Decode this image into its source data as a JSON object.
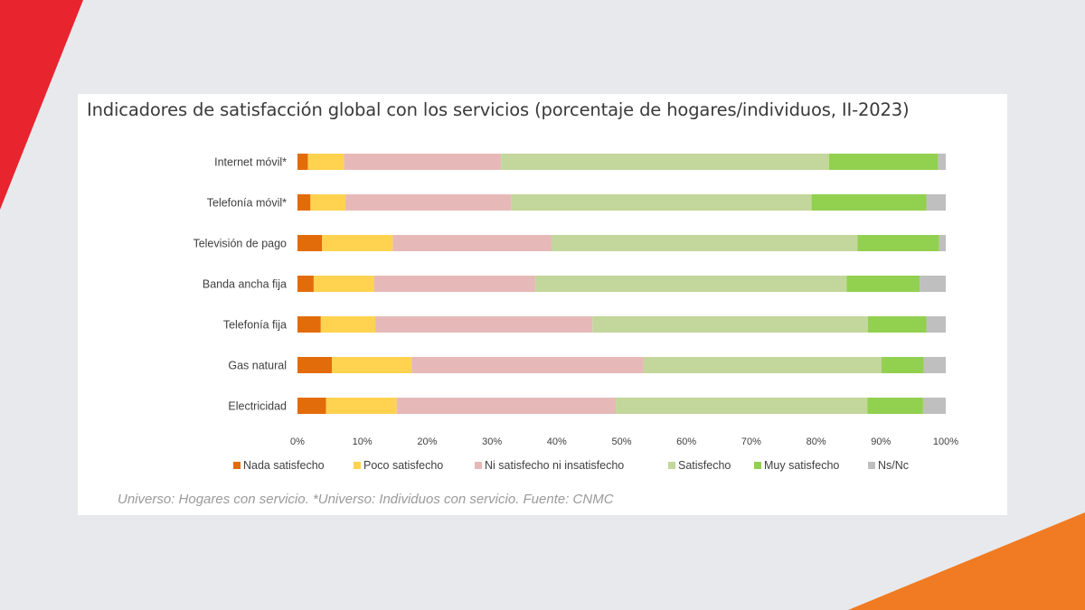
{
  "colors": {
    "background": "#e8e9ec",
    "accent_red": "#e8242f",
    "accent_orange": "#f07b22"
  },
  "chart": {
    "title": "Indicadores de satisfacción global con los servicios (porcentaje de hogares/individuos, II-2023)",
    "source": "Universo: Hogares con servicio. *Universo: Individuos con servicio. Fuente: CNMC"
  },
  "chart_data": {
    "type": "bar",
    "orientation": "horizontal",
    "stacked": true,
    "title": "Indicadores de satisfacción global con los servicios (porcentaje de hogares/individuos, II-2023)",
    "categories": [
      "Internet móvil*",
      "Telefonía móvil*",
      "Televisión de pago",
      "Banda ancha fija",
      "Telefonía fija",
      "Gas natural",
      "Electricidad"
    ],
    "x_ticks": [
      "0%",
      "10%",
      "20%",
      "30%",
      "40%",
      "50%",
      "60%",
      "70%",
      "80%",
      "90%",
      "100%"
    ],
    "xlim": [
      0,
      100
    ],
    "grid": false,
    "legend_position": "bottom",
    "series": [
      {
        "name": "Nada satisfecho",
        "color": "#e36c0a",
        "values": [
          1.6,
          2.0,
          3.8,
          2.5,
          3.6,
          5.3,
          4.4
        ]
      },
      {
        "name": "Poco satisfecho",
        "color": "#ffd34f",
        "values": [
          5.6,
          5.4,
          10.9,
          9.3,
          8.4,
          12.3,
          10.9
        ]
      },
      {
        "name": "Ni satisfecho ni insatisfecho",
        "color": "#e6b9b8",
        "values": [
          24.2,
          25.6,
          24.5,
          24.9,
          33.5,
          35.8,
          33.8
        ]
      },
      {
        "name": "Satisfecho",
        "color": "#c3d69b",
        "values": [
          50.6,
          46.3,
          47.2,
          48.0,
          42.5,
          36.7,
          38.8
        ]
      },
      {
        "name": "Muy satisfecho",
        "color": "#92d050",
        "values": [
          16.8,
          17.7,
          12.6,
          11.3,
          9.0,
          6.5,
          8.6
        ]
      },
      {
        "name": "Ns/Nc",
        "color": "#bfbfbf",
        "values": [
          1.2,
          3.0,
          1.0,
          4.0,
          3.0,
          3.4,
          3.5
        ]
      }
    ]
  }
}
